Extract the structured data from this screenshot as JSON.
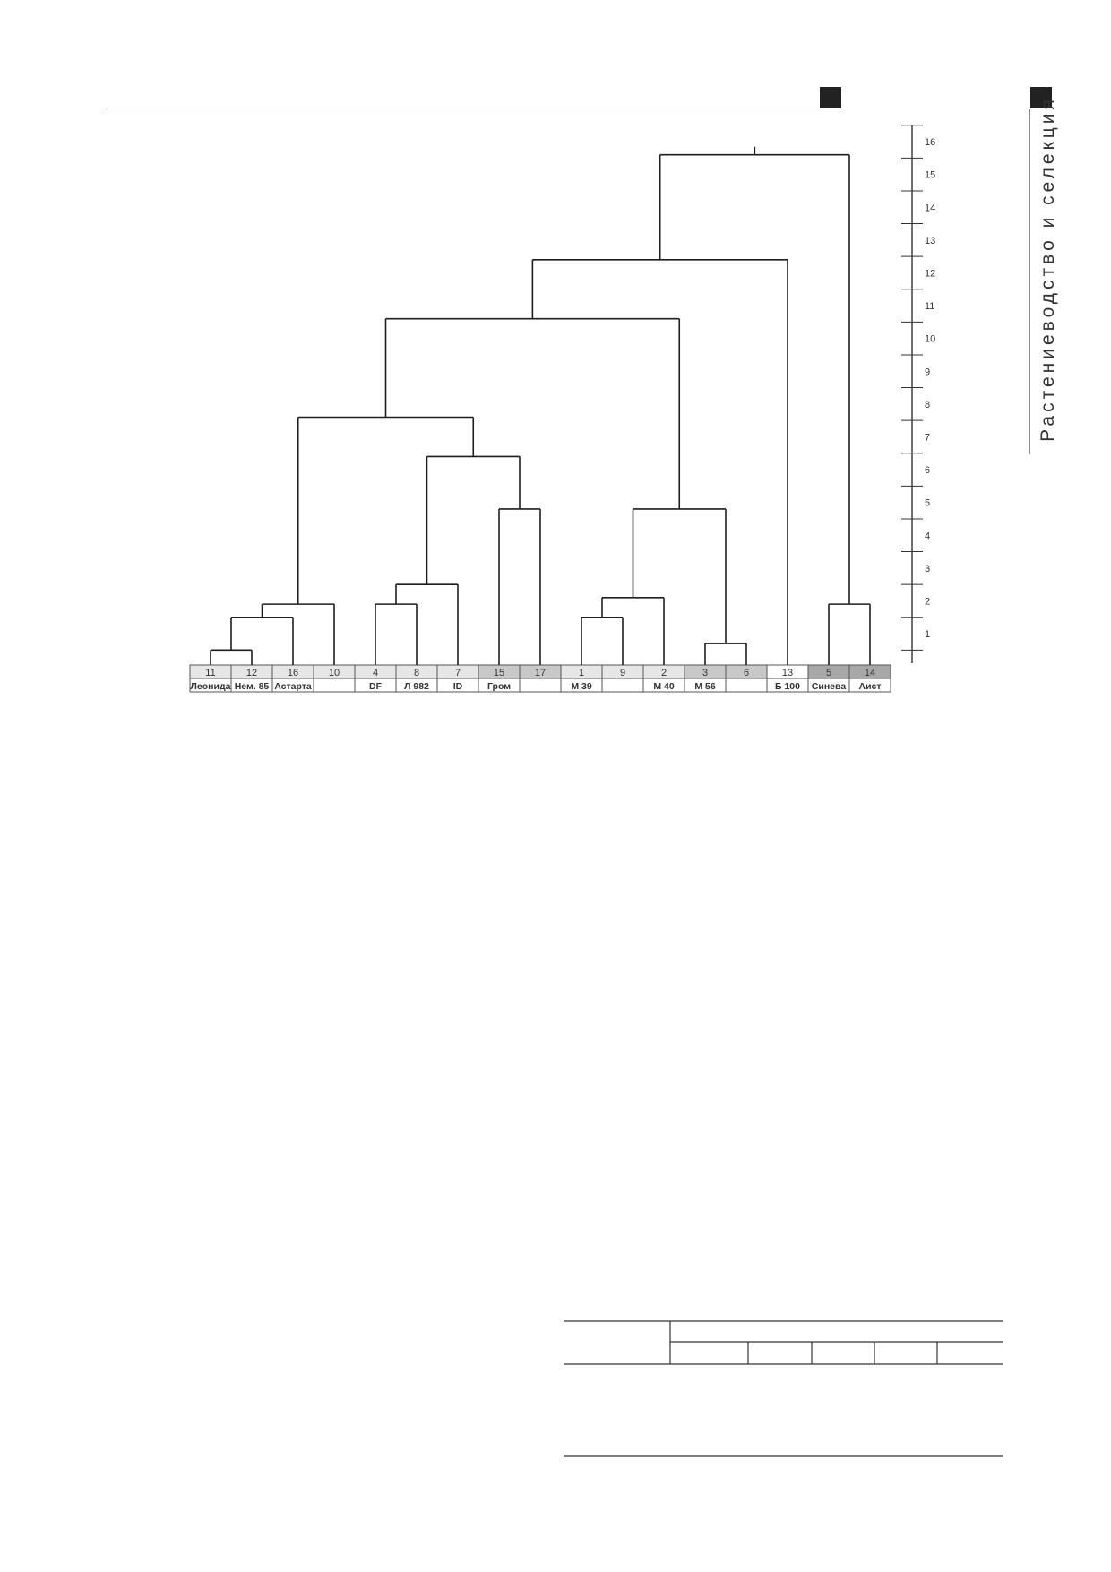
{
  "header": {
    "section_title": "Растениеводство и селекция"
  },
  "colors": {
    "cell_light": "#e6e6e6",
    "cell_mid": "#c8c8c8",
    "cell_dark": "#a8a8a8",
    "line": "#1e1e1e"
  },
  "dendrogram": {
    "scale_ticks": [
      "1",
      "2",
      "3",
      "4",
      "5",
      "6",
      "7",
      "8",
      "9",
      "10",
      "11",
      "12",
      "13",
      "14",
      "15",
      "16"
    ],
    "leaves": [
      {
        "num": "11",
        "name": "Леонида",
        "shade": "light"
      },
      {
        "num": "12",
        "name": "Нем. 85",
        "shade": "light"
      },
      {
        "num": "16",
        "name": "Астарта",
        "shade": "light"
      },
      {
        "num": "10",
        "name": "",
        "shade": "light"
      },
      {
        "num": "4",
        "name": "DF",
        "shade": "light"
      },
      {
        "num": "8",
        "name": "Л 982",
        "shade": "light"
      },
      {
        "num": "7",
        "name": "ID",
        "shade": "light"
      },
      {
        "num": "15",
        "name": "Гром",
        "shade": "mid"
      },
      {
        "num": "17",
        "name": "",
        "shade": "mid"
      },
      {
        "num": "1",
        "name": "М 39",
        "shade": "light"
      },
      {
        "num": "9",
        "name": "",
        "shade": "light"
      },
      {
        "num": "2",
        "name": "М 40",
        "shade": "light"
      },
      {
        "num": "3",
        "name": "М 56",
        "shade": "mid"
      },
      {
        "num": "6",
        "name": "",
        "shade": "mid"
      },
      {
        "num": "13",
        "name": "Б 100",
        "shade": "white"
      },
      {
        "num": "5",
        "name": "Синева",
        "shade": "dark"
      },
      {
        "num": "14",
        "name": "Аист",
        "shade": "dark"
      }
    ],
    "merges": [
      {
        "a": "L0",
        "b": "L1",
        "h": 0.4
      },
      {
        "a": "N0",
        "b": "L2",
        "h": 1.4
      },
      {
        "a": "N1",
        "b": "L3",
        "h": 1.8
      },
      {
        "a": "L4",
        "b": "L5",
        "h": 1.8
      },
      {
        "a": "N3",
        "b": "L6",
        "h": 2.4
      },
      {
        "a": "L7",
        "b": "L8",
        "h": 4.7
      },
      {
        "a": "N4",
        "b": "N5",
        "h": 6.3
      },
      {
        "a": "N2",
        "b": "N6",
        "h": 7.5
      },
      {
        "a": "L9",
        "b": "L10",
        "h": 1.4
      },
      {
        "a": "N8",
        "b": "L11",
        "h": 2.0
      },
      {
        "a": "L12",
        "b": "L13",
        "h": 0.6
      },
      {
        "a": "N9",
        "b": "N10",
        "h": 4.7
      },
      {
        "a": "N7",
        "b": "N11",
        "h": 10.5
      },
      {
        "a": "N12",
        "b": "L14",
        "h": 12.3
      },
      {
        "a": "L15",
        "b": "L16",
        "h": 1.8
      },
      {
        "a": "N13",
        "b": "N14",
        "h": 15.5
      }
    ]
  }
}
